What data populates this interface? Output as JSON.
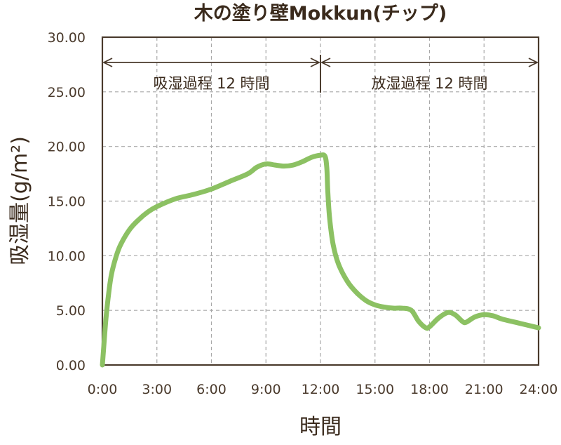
{
  "chart_data": {
    "type": "line",
    "title": "木の塗り壁Mokkun(チップ)",
    "xlabel": "時間",
    "ylabel": "吸湿量(g/m²)",
    "xlim": [
      0,
      24
    ],
    "ylim": [
      0,
      30
    ],
    "x_tick_labels": [
      "0:00",
      "3:00",
      "6:00",
      "9:00",
      "12:00",
      "15:00",
      "18:00",
      "21:00",
      "24:00"
    ],
    "y_tick_labels": [
      "0.00",
      "5.00",
      "10.00",
      "15.00",
      "20.00",
      "25.00",
      "30.00"
    ],
    "grid": true,
    "annotations": [
      {
        "text": "吸湿過程 12 時間",
        "x_start": 0,
        "x_end": 12
      },
      {
        "text": "放湿過程 12 時間",
        "x_start": 12,
        "x_end": 24
      }
    ],
    "series": [
      {
        "color": "#8cc163",
        "points": [
          [
            0,
            0
          ],
          [
            0.1,
            2.2
          ],
          [
            0.2,
            4.3
          ],
          [
            0.35,
            6.6
          ],
          [
            0.5,
            8.3
          ],
          [
            0.75,
            9.9
          ],
          [
            1,
            11.0
          ],
          [
            1.5,
            12.4
          ],
          [
            2,
            13.3
          ],
          [
            2.5,
            14.0
          ],
          [
            3,
            14.5
          ],
          [
            4,
            15.2
          ],
          [
            5,
            15.6
          ],
          [
            6,
            16.1
          ],
          [
            7,
            16.8
          ],
          [
            8,
            17.5
          ],
          [
            8.5,
            18.1
          ],
          [
            9,
            18.4
          ],
          [
            9.5,
            18.3
          ],
          [
            10,
            18.2
          ],
          [
            10.5,
            18.3
          ],
          [
            11,
            18.6
          ],
          [
            11.5,
            19.0
          ],
          [
            12,
            19.2
          ],
          [
            12.25,
            19.1
          ],
          [
            12.35,
            18.0
          ],
          [
            12.4,
            16.0
          ],
          [
            12.5,
            13.5
          ],
          [
            12.7,
            11.0
          ],
          [
            13,
            9.2
          ],
          [
            13.5,
            7.6
          ],
          [
            14,
            6.6
          ],
          [
            14.5,
            5.9
          ],
          [
            15,
            5.5
          ],
          [
            15.5,
            5.3
          ],
          [
            16,
            5.2
          ],
          [
            16.5,
            5.2
          ],
          [
            17,
            5.0
          ],
          [
            17.4,
            4.0
          ],
          [
            17.8,
            3.4
          ],
          [
            18,
            3.5
          ],
          [
            18.5,
            4.3
          ],
          [
            19,
            4.8
          ],
          [
            19.4,
            4.6
          ],
          [
            19.8,
            4.0
          ],
          [
            20,
            3.9
          ],
          [
            20.5,
            4.4
          ],
          [
            21,
            4.6
          ],
          [
            21.5,
            4.5
          ],
          [
            22,
            4.2
          ],
          [
            23,
            3.8
          ],
          [
            24,
            3.4
          ]
        ]
      }
    ]
  }
}
